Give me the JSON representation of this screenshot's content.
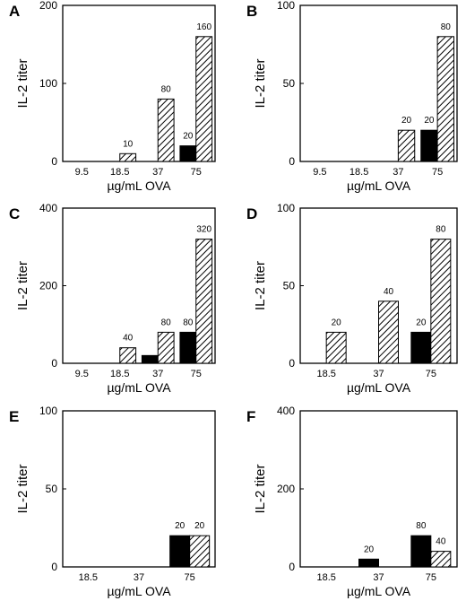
{
  "chart_data": [
    {
      "panel": "A",
      "type": "bar",
      "ylabel": "IL-2  titer",
      "xlabel": "µg/mL  OVA",
      "ylim": [
        0,
        200
      ],
      "yticks": [
        0,
        100,
        200
      ],
      "categories": [
        "9.5",
        "18.5",
        "37",
        "75"
      ],
      "series": [
        {
          "fill": "solid",
          "values": [
            0,
            0,
            0,
            20
          ],
          "labels": [
            "",
            "",
            "",
            "20"
          ]
        },
        {
          "fill": "hatched",
          "values": [
            0,
            10,
            80,
            160
          ],
          "labels": [
            "",
            "10",
            "80",
            "160"
          ]
        }
      ]
    },
    {
      "panel": "B",
      "type": "bar",
      "ylabel": "IL-2  titer",
      "xlabel": "µg/mL  OVA",
      "ylim": [
        0,
        100
      ],
      "yticks": [
        0,
        50,
        100
      ],
      "categories": [
        "9.5",
        "18.5",
        "37",
        "75"
      ],
      "series": [
        {
          "fill": "solid",
          "values": [
            0,
            0,
            0,
            20
          ],
          "labels": [
            "",
            "",
            "",
            "20"
          ]
        },
        {
          "fill": "hatched",
          "values": [
            0,
            0,
            20,
            80
          ],
          "labels": [
            "",
            "",
            "20",
            "80"
          ]
        }
      ]
    },
    {
      "panel": "C",
      "type": "bar",
      "ylabel": "IL-2  titer",
      "xlabel": "µg/mL  OVA",
      "ylim": [
        0,
        400
      ],
      "yticks": [
        0,
        200,
        400
      ],
      "categories": [
        "9.5",
        "18.5",
        "37",
        "75"
      ],
      "series": [
        {
          "fill": "solid",
          "values": [
            0,
            0,
            20,
            80
          ],
          "labels": [
            "",
            "",
            "",
            "80"
          ]
        },
        {
          "fill": "hatched",
          "values": [
            0,
            40,
            80,
            320
          ],
          "labels": [
            "",
            "40",
            "80",
            "320"
          ]
        }
      ]
    },
    {
      "panel": "D",
      "type": "bar",
      "ylabel": "IL-2  titer",
      "xlabel": "µg/mL  OVA",
      "ylim": [
        0,
        100
      ],
      "yticks": [
        0,
        50,
        100
      ],
      "categories": [
        "18.5",
        "37",
        "75"
      ],
      "series": [
        {
          "fill": "solid",
          "values": [
            0,
            0,
            20
          ],
          "labels": [
            "",
            "",
            "20"
          ]
        },
        {
          "fill": "hatched",
          "values": [
            20,
            40,
            80
          ],
          "labels": [
            "20",
            "40",
            "80"
          ]
        }
      ]
    },
    {
      "panel": "E",
      "type": "bar",
      "ylabel": "IL-2  titer",
      "xlabel": "µg/mL  OVA",
      "ylim": [
        0,
        100
      ],
      "yticks": [
        0,
        50,
        100
      ],
      "categories": [
        "18.5",
        "37",
        "75"
      ],
      "series": [
        {
          "fill": "solid",
          "values": [
            0,
            0,
            20
          ],
          "labels": [
            "",
            "",
            "20"
          ]
        },
        {
          "fill": "hatched",
          "values": [
            0,
            0,
            20
          ],
          "labels": [
            "",
            "",
            "20"
          ]
        }
      ]
    },
    {
      "panel": "F",
      "type": "bar",
      "ylabel": "IL-2  titer",
      "xlabel": "µg/mL  OVA",
      "ylim": [
        0,
        400
      ],
      "yticks": [
        0,
        200,
        400
      ],
      "categories": [
        "18.5",
        "37",
        "75"
      ],
      "series": [
        {
          "fill": "solid",
          "values": [
            0,
            20,
            80
          ],
          "labels": [
            "",
            "20",
            "80"
          ]
        },
        {
          "fill": "hatched",
          "values": [
            0,
            0,
            40
          ],
          "labels": [
            "",
            "",
            "40"
          ]
        }
      ]
    }
  ]
}
